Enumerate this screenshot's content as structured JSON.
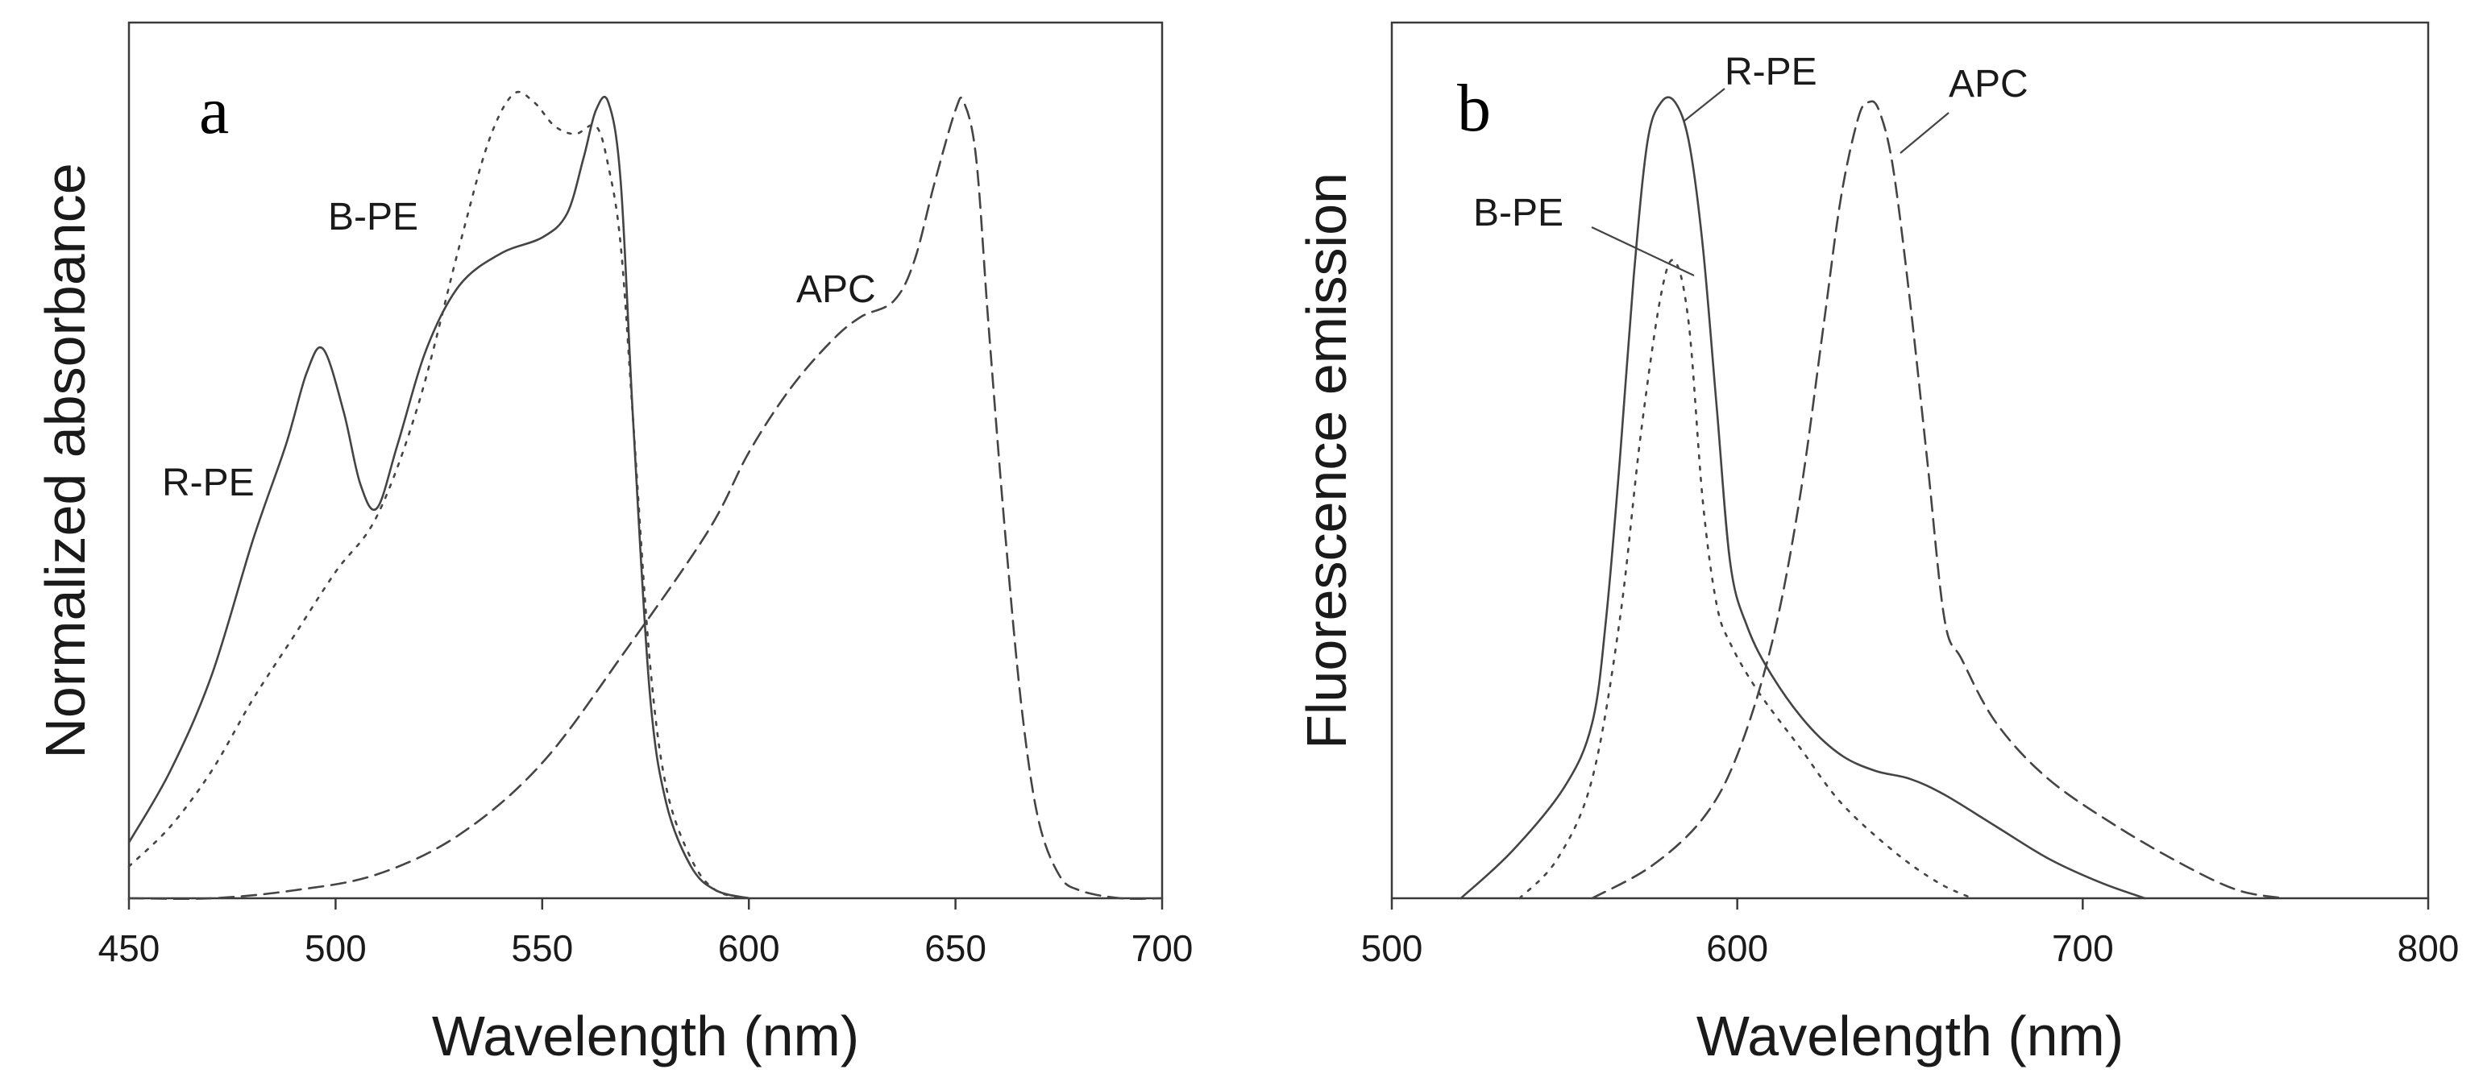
{
  "chart_data": [
    {
      "type": "line",
      "panel": "a",
      "xlabel": "Wavelength (nm)",
      "ylabel": "Normalized absorbance",
      "xlim": [
        450,
        700
      ],
      "ylim": [
        0,
        1.1
      ],
      "xticks": [
        450,
        500,
        550,
        600,
        650,
        700
      ],
      "series": [
        {
          "name": "R-PE",
          "style": "solid",
          "x": [
            450,
            460,
            470,
            480,
            488,
            493,
            497,
            502,
            506,
            510,
            515,
            522,
            530,
            540,
            550,
            556,
            560,
            563,
            566,
            569,
            572,
            576,
            580,
            586,
            592,
            600
          ],
          "values": [
            0.07,
            0.16,
            0.28,
            0.45,
            0.57,
            0.66,
            0.69,
            0.61,
            0.52,
            0.49,
            0.57,
            0.69,
            0.77,
            0.81,
            0.83,
            0.86,
            0.93,
            0.99,
            1.0,
            0.9,
            0.6,
            0.26,
            0.12,
            0.04,
            0.01,
            0.0
          ]
        },
        {
          "name": "B-PE",
          "style": "dotted",
          "x": [
            450,
            460,
            470,
            480,
            490,
            500,
            510,
            520,
            530,
            537,
            543,
            548,
            553,
            558,
            563,
            566,
            569,
            572,
            576,
            580,
            586,
            592,
            600
          ],
          "values": [
            0.04,
            0.09,
            0.16,
            0.25,
            0.33,
            0.41,
            0.48,
            0.62,
            0.82,
            0.95,
            1.01,
            1.0,
            0.97,
            0.96,
            0.97,
            0.92,
            0.82,
            0.6,
            0.3,
            0.14,
            0.05,
            0.01,
            0.0
          ]
        },
        {
          "name": "APC",
          "style": "dashed",
          "x": [
            450,
            470,
            490,
            510,
            530,
            550,
            570,
            590,
            600,
            610,
            620,
            627,
            635,
            640,
            645,
            650,
            652,
            655,
            658,
            662,
            666,
            670,
            675,
            680,
            690,
            700
          ],
          "values": [
            0.0,
            0.0,
            0.01,
            0.03,
            0.08,
            0.17,
            0.31,
            0.46,
            0.56,
            0.64,
            0.7,
            0.73,
            0.75,
            0.8,
            0.9,
            0.99,
            1.0,
            0.93,
            0.72,
            0.46,
            0.24,
            0.1,
            0.03,
            0.01,
            0.0,
            0.0
          ]
        }
      ],
      "annotations": [
        "a",
        "B-PE",
        "R-PE",
        "APC"
      ]
    },
    {
      "type": "line",
      "panel": "b",
      "xlabel": "Wavelength (nm)",
      "ylabel": "Fluorescence emission",
      "xlim": [
        500,
        800
      ],
      "ylim": [
        0,
        1.1
      ],
      "xticks": [
        500,
        600,
        700,
        800
      ],
      "series": [
        {
          "name": "R-PE",
          "style": "solid",
          "x": [
            520,
            535,
            550,
            558,
            562,
            566,
            570,
            574,
            578,
            582,
            586,
            590,
            594,
            598,
            603,
            610,
            620,
            630,
            640,
            650,
            660,
            675,
            690,
            705,
            718
          ],
          "values": [
            0.0,
            0.06,
            0.14,
            0.22,
            0.35,
            0.55,
            0.78,
            0.95,
            1.0,
            1.0,
            0.95,
            0.82,
            0.62,
            0.42,
            0.34,
            0.28,
            0.22,
            0.18,
            0.16,
            0.15,
            0.13,
            0.09,
            0.05,
            0.02,
            0.0
          ]
        },
        {
          "name": "B-PE",
          "style": "dotted",
          "x": [
            537,
            548,
            558,
            566,
            572,
            578,
            582,
            586,
            590,
            594,
            598,
            606,
            618,
            630,
            645,
            658,
            668
          ],
          "values": [
            0.0,
            0.05,
            0.15,
            0.35,
            0.58,
            0.76,
            0.8,
            0.72,
            0.5,
            0.37,
            0.32,
            0.26,
            0.19,
            0.12,
            0.06,
            0.02,
            0.0
          ]
        },
        {
          "name": "APC",
          "style": "dashed",
          "x": [
            558,
            575,
            590,
            600,
            610,
            618,
            625,
            630,
            635,
            638,
            641,
            645,
            650,
            655,
            660,
            665,
            675,
            690,
            710,
            730,
            745,
            758
          ],
          "values": [
            0.0,
            0.04,
            0.1,
            0.18,
            0.32,
            0.5,
            0.72,
            0.88,
            0.98,
            1.0,
            0.99,
            0.92,
            0.75,
            0.55,
            0.35,
            0.3,
            0.22,
            0.15,
            0.09,
            0.04,
            0.01,
            0.0
          ]
        }
      ],
      "annotations": [
        "b",
        "R-PE",
        "APC",
        "B-PE"
      ]
    }
  ]
}
